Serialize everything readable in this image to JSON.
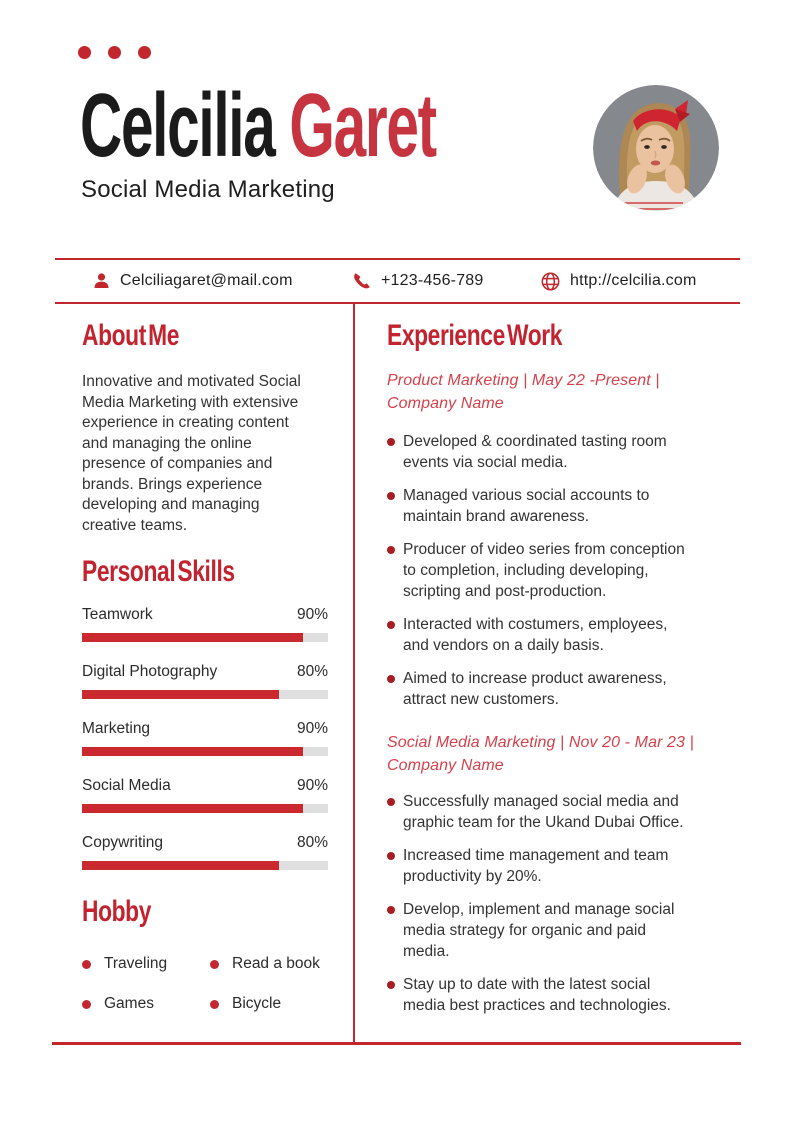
{
  "page": {
    "accent_red": "#c1272d",
    "heading_red": "#c2232e",
    "name_red": "#c63440",
    "job_title_red": "#d4414b",
    "skill_fill_red": "#cb2930",
    "body_text": "#333333"
  },
  "header": {
    "name_first": "Celcilia",
    "name_last": "Garet",
    "subtitle": "Social Media Marketing"
  },
  "contact": {
    "email": "Celciliagaret@mail.com",
    "phone": "+123-456-789",
    "website": "http://celcilia.com"
  },
  "about": {
    "heading": "About Me",
    "text": "Innovative and motivated Social\nMedia Marketing with extensive\nexperience in creating content\nand managing the online\npresence of companies and\nbrands. Brings experience\ndeveloping and managing\ncreative teams."
  },
  "skills": {
    "heading": "Personal Skills",
    "items": [
      {
        "label": "Teamwork",
        "value": "90%",
        "percent": 90
      },
      {
        "label": "Digital Photography",
        "value": "80%",
        "percent": 80
      },
      {
        "label": "Marketing",
        "value": "90%",
        "percent": 90
      },
      {
        "label": "Social Media",
        "value": "90%",
        "percent": 90
      },
      {
        "label": "Copywriting",
        "value": "80%",
        "percent": 80
      }
    ]
  },
  "hobby": {
    "heading": "Hobby",
    "items": [
      "Traveling",
      "Read a book",
      "Games",
      "Bicycle"
    ]
  },
  "experience": {
    "heading": "Experience Work",
    "jobs": [
      {
        "title": "Product Marketing | May 22 -Present |\nCompany Name",
        "bullets": [
          "Developed & coordinated tasting room\nevents via social media.",
          "Managed various social accounts to\nmaintain brand awareness.",
          "Producer of video series from conception\nto completion, including developing,\nscripting and post-production.",
          "Interacted with costumers, employees,\nand vendors on a daily basis.",
          "Aimed to increase product awareness,\nattract new customers."
        ]
      },
      {
        "title": "Social Media Marketing | Nov 20 - Mar 23 |\nCompany Name",
        "bullets": [
          "Successfully managed social media and\ngraphic team for the Ukand Dubai Office.",
          "Increased time management and team\nproductivity by 20%.",
          "Develop, implement and manage social\nmedia strategy for organic and paid\nmedia.",
          "Stay up to date with the latest social\nmedia best practices and technologies."
        ]
      }
    ]
  }
}
